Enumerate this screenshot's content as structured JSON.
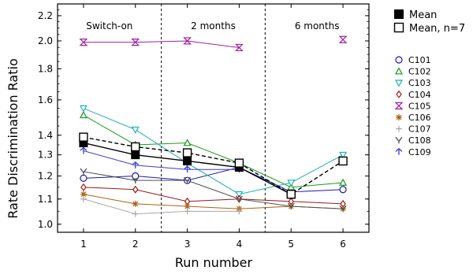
{
  "chart_data": {
    "type": "line",
    "title": "",
    "xlabel": "Run number",
    "ylabel": "Rate Discrimination Ratio",
    "y_scale": "log",
    "xlim": [
      0.5,
      6.5
    ],
    "ylim": [
      0.97,
      2.3
    ],
    "x_ticks": [
      1,
      2,
      3,
      4,
      5,
      6
    ],
    "y_ticks": [
      1.0,
      1.1,
      1.2,
      1.3,
      1.4,
      1.6,
      1.8,
      2.0,
      2.2
    ],
    "phase_dividers": [
      2.5,
      4.5
    ],
    "phases": [
      {
        "label": "Switch-on",
        "x": 1.5
      },
      {
        "label": "2 months",
        "x": 3.5
      },
      {
        "label": "6 months",
        "x": 5.5
      }
    ],
    "legend_position": "right",
    "x": [
      1,
      2,
      3,
      4,
      5,
      6
    ],
    "series": [
      {
        "name": "Mean",
        "marker": "filled-square",
        "color": "#000000",
        "dash": "solid",
        "lw": 1.4,
        "size": 10,
        "values": [
          1.36,
          1.3,
          1.27,
          1.24,
          1.12,
          null
        ]
      },
      {
        "name": "Mean, n=7",
        "marker": "open-square",
        "color": "#000000",
        "dash": "dashed",
        "lw": 1.4,
        "size": 10,
        "values": [
          1.39,
          1.34,
          1.31,
          1.26,
          1.12,
          1.27
        ]
      },
      {
        "name": "C101",
        "marker": "circle",
        "color": "#1a1aa8",
        "dash": "solid",
        "lw": 1,
        "size": 8,
        "values": [
          1.19,
          1.2,
          1.18,
          1.24,
          1.13,
          1.14
        ]
      },
      {
        "name": "C102",
        "marker": "triangle-up",
        "color": "#1a9a1a",
        "dash": "solid",
        "lw": 1,
        "size": 8,
        "values": [
          1.51,
          1.35,
          1.36,
          1.26,
          1.15,
          1.17
        ]
      },
      {
        "name": "C103",
        "marker": "triangle-down",
        "color": "#1fb0b0",
        "dash": "solid",
        "lw": 1,
        "size": 8,
        "values": [
          1.55,
          1.43,
          1.26,
          1.12,
          1.17,
          1.3
        ]
      },
      {
        "name": "C104",
        "marker": "diamond",
        "color": "#a01515",
        "dash": "solid",
        "lw": 1,
        "size": 8,
        "values": [
          1.15,
          1.14,
          1.09,
          1.1,
          1.09,
          1.08
        ]
      },
      {
        "name": "C105",
        "marker": "hourglass",
        "color": "#a020a0",
        "dash": "solid",
        "lw": 1,
        "size": 8,
        "values": [
          1.99,
          1.99,
          2.0,
          1.95,
          null,
          2.01
        ]
      },
      {
        "name": "C106",
        "marker": "asterisk",
        "color": "#b06010",
        "dash": "solid",
        "lw": 1,
        "size": 8,
        "values": [
          1.12,
          1.08,
          1.07,
          1.06,
          1.07,
          1.06
        ]
      },
      {
        "name": "C107",
        "marker": "plus",
        "color": "#a8a8a8",
        "dash": "solid",
        "lw": 1,
        "size": 8,
        "values": [
          1.1,
          1.04,
          1.05,
          1.05,
          null,
          null
        ]
      },
      {
        "name": "C108",
        "marker": "tri-x",
        "color": "#505050",
        "dash": "solid",
        "lw": 1,
        "size": 8,
        "values": [
          1.22,
          1.18,
          1.18,
          1.1,
          1.07,
          1.06
        ]
      },
      {
        "name": "C109",
        "marker": "arrow",
        "color": "#3a3ad8",
        "dash": "solid",
        "lw": 1,
        "size": 8,
        "values": [
          1.32,
          1.25,
          1.23,
          1.23,
          null,
          null
        ]
      }
    ]
  }
}
